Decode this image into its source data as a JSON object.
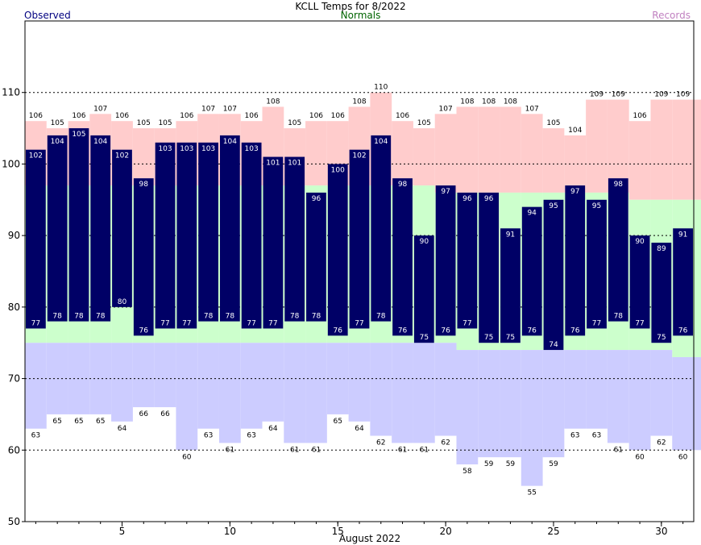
{
  "header": {
    "title": "KCLL Temps for 8/2022",
    "observed_label": "Observed",
    "normals_label": "Normals",
    "records_label": "Records"
  },
  "chart_data": {
    "type": "bar",
    "title": "KCLL Temps for 8/2022",
    "xlabel": "August 2022",
    "ylabel": "",
    "x_ticks": [
      5,
      10,
      15,
      20,
      25,
      30
    ],
    "y_ticks": [
      50,
      60,
      70,
      80,
      90,
      100,
      110
    ],
    "ylim": [
      50,
      120
    ],
    "xlim": [
      0.5,
      31.5
    ],
    "grid": "dashed horizontal at 60, 70, 80, 90, 100, 110",
    "days": [
      1,
      2,
      3,
      4,
      5,
      6,
      7,
      8,
      9,
      10,
      11,
      12,
      13,
      14,
      15,
      16,
      17,
      18,
      19,
      20,
      21,
      22,
      23,
      24,
      25,
      26,
      27,
      28,
      29,
      30,
      31
    ],
    "series": [
      {
        "name": "Observed",
        "values_high": [
          102,
          104,
          105,
          104,
          102,
          98,
          103,
          103,
          103,
          104,
          103,
          101,
          101,
          96,
          100,
          102,
          104,
          98,
          90,
          97,
          96,
          96,
          91,
          94,
          95,
          97,
          95,
          98,
          90,
          89,
          91
        ],
        "values_low": [
          77,
          78,
          78,
          78,
          80,
          76,
          77,
          77,
          78,
          78,
          77,
          77,
          78,
          78,
          76,
          77,
          78,
          76,
          75,
          76,
          77,
          75,
          75,
          76,
          74,
          76,
          77,
          78,
          77,
          75,
          76
        ]
      },
      {
        "name": "Normals",
        "values_high": [
          97,
          97,
          97,
          97,
          97,
          97,
          97,
          97,
          97,
          97,
          97,
          97,
          97,
          97,
          97,
          97,
          97,
          97,
          97,
          96,
          96,
          96,
          96,
          96,
          96,
          96,
          96,
          96,
          95,
          95,
          95
        ],
        "values_low": [
          75,
          75,
          75,
          75,
          75,
          75,
          75,
          75,
          75,
          75,
          75,
          75,
          75,
          75,
          75,
          75,
          75,
          75,
          75,
          75,
          74,
          74,
          74,
          74,
          74,
          74,
          74,
          74,
          74,
          74,
          73
        ]
      },
      {
        "name": "Records",
        "values_high": [
          106,
          105,
          106,
          107,
          106,
          105,
          105,
          106,
          107,
          107,
          106,
          108,
          105,
          106,
          106,
          108,
          110,
          106,
          105,
          107,
          108,
          108,
          108,
          107,
          105,
          104,
          109,
          109,
          106,
          109,
          109
        ],
        "values_low": [
          63,
          65,
          65,
          65,
          64,
          66,
          66,
          60,
          63,
          61,
          63,
          64,
          61,
          61,
          65,
          64,
          62,
          61,
          61,
          62,
          58,
          59,
          59,
          55,
          59,
          63,
          63,
          61,
          60,
          62,
          60
        ]
      }
    ]
  },
  "colors": {
    "observed": "#000066",
    "normals": "#ccffcc",
    "record_high": "#ffcccc",
    "record_low": "#ccccff"
  }
}
